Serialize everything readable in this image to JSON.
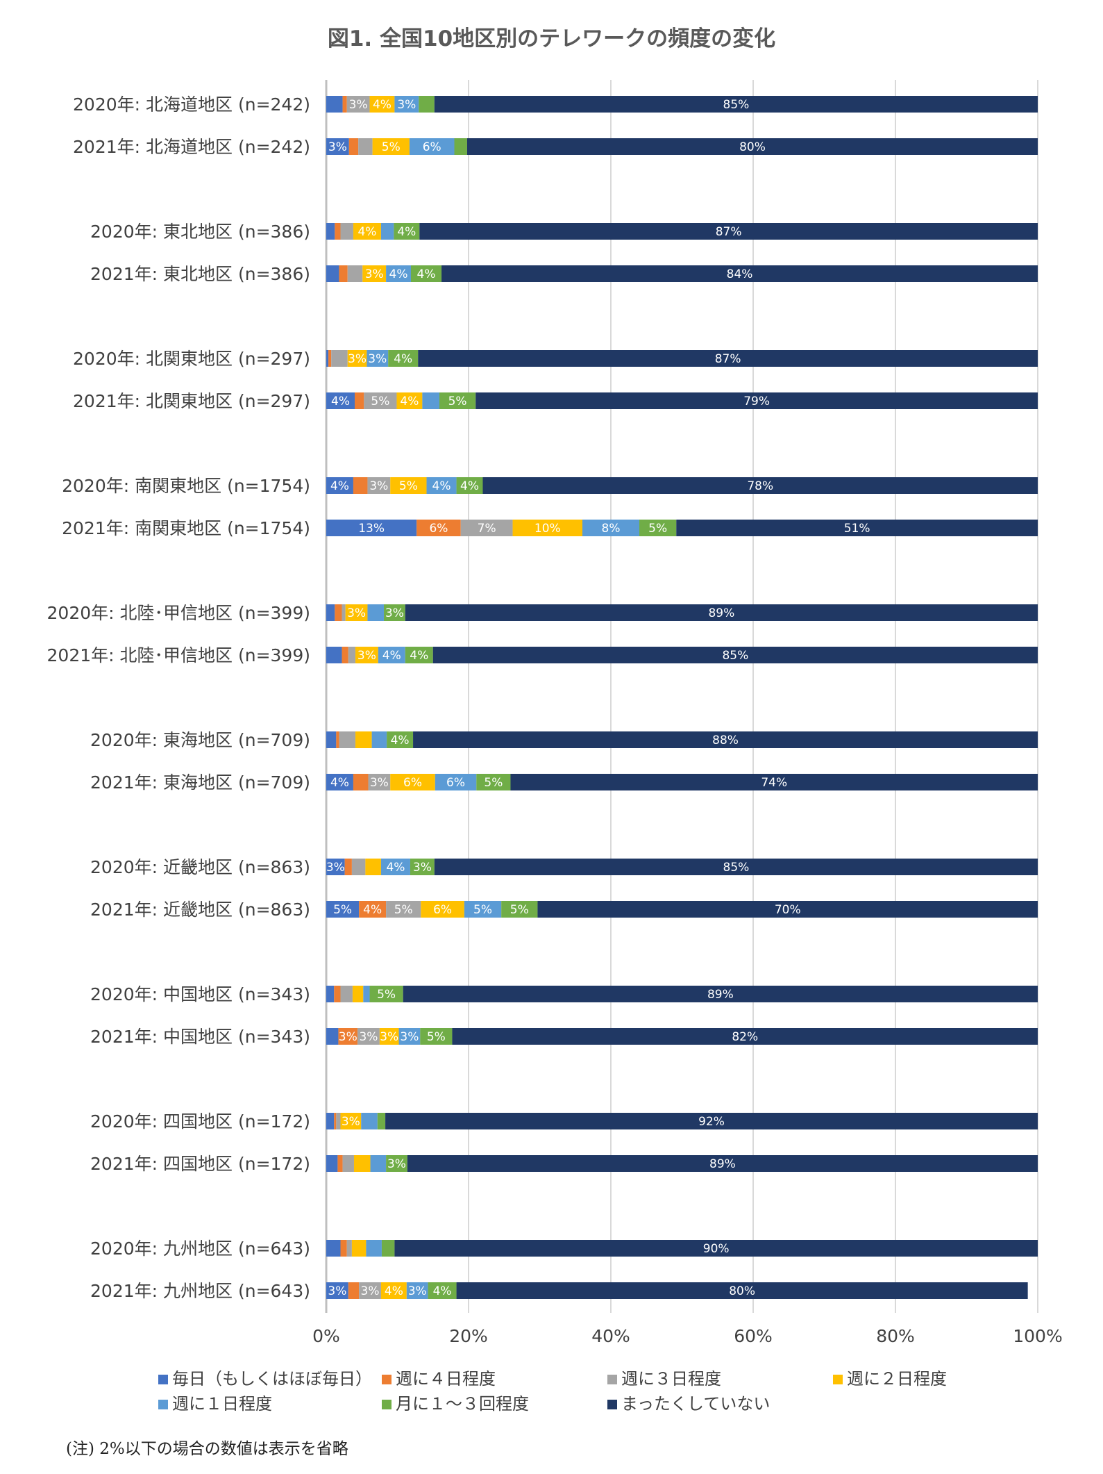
{
  "chart_data": {
    "type": "bar",
    "orientation": "horizontal-stacked-100",
    "title": "図1. 全国10地区別のテレワークの頻度の変化",
    "note": "(注) 2%以下の場合の数値は表示を省略",
    "x_ticks": [
      "0%",
      "20%",
      "40%",
      "60%",
      "80%",
      "100%"
    ],
    "xlim": [
      0,
      100
    ],
    "grid": true,
    "legend_position": "bottom",
    "categories": [
      "2020年: 北海道地区 (n=242)",
      "2021年: 北海道地区 (n=242)",
      "2020年: 東北地区 (n=386)",
      "2021年: 東北地区 (n=386)",
      "2020年: 北関東地区 (n=297)",
      "2021年: 北関東地区 (n=297)",
      "2020年: 南関東地区 (n=1754)",
      "2021年: 南関東地区 (n=1754)",
      "2020年: 北陸･甲信地区 (n=399)",
      "2021年: 北陸･甲信地区 (n=399)",
      "2020年: 東海地区 (n=709)",
      "2021年: 東海地区 (n=709)",
      "2020年: 近畿地区 (n=863)",
      "2021年: 近畿地区 (n=863)",
      "2020年: 中国地区 (n=343)",
      "2021年: 中国地区 (n=343)",
      "2020年: 四国地区 (n=172)",
      "2021年: 四国地区 (n=172)",
      "2020年: 九州地区 (n=643)",
      "2021年: 九州地区 (n=643)"
    ],
    "series": [
      {
        "name": "毎日（もしくはほぼ毎日）",
        "color": "#4472c4",
        "values": [
          2.3,
          3.2,
          1.2,
          1.8,
          0.3,
          4.0,
          3.8,
          12.7,
          1.2,
          2.2,
          1.4,
          3.8,
          2.6,
          4.6,
          1.1,
          1.7,
          1.1,
          1.6,
          2.0,
          3.1
        ]
      },
      {
        "name": "週に４日程度",
        "color": "#ed7d31",
        "values": [
          0.6,
          1.3,
          0.8,
          1.2,
          0.4,
          1.3,
          2.0,
          6.2,
          1.0,
          0.9,
          0.4,
          2.1,
          1.0,
          3.8,
          0.9,
          2.7,
          0.3,
          0.7,
          0.9,
          1.5
        ]
      },
      {
        "name": "週に３日程度",
        "color": "#a5a5a5",
        "values": [
          3.2,
          2.0,
          1.8,
          2.1,
          2.3,
          4.6,
          3.2,
          7.3,
          0.5,
          1.0,
          2.3,
          3.1,
          1.9,
          4.9,
          1.7,
          3.1,
          0.6,
          1.6,
          0.7,
          3.1
        ]
      },
      {
        "name": "週に２日程度",
        "color": "#ffc000",
        "values": [
          3.5,
          5.2,
          3.9,
          3.3,
          2.7,
          3.6,
          5.1,
          9.8,
          3.1,
          3.2,
          2.3,
          6.3,
          2.2,
          6.1,
          1.5,
          2.7,
          2.9,
          2.3,
          2.0,
          3.6
        ]
      },
      {
        "name": "週に１日程度",
        "color": "#5b9bd5",
        "values": [
          3.4,
          6.3,
          1.8,
          3.5,
          3.0,
          2.4,
          4.2,
          8.0,
          2.3,
          3.8,
          2.1,
          5.8,
          4.1,
          5.2,
          0.9,
          3.0,
          2.3,
          2.2,
          2.2,
          3.0
        ]
      },
      {
        "name": "月に１～３回程度",
        "color": "#70ad47",
        "values": [
          2.2,
          1.8,
          3.6,
          4.3,
          4.2,
          5.1,
          3.7,
          5.2,
          3.0,
          3.9,
          3.7,
          4.8,
          3.4,
          5.1,
          4.7,
          4.5,
          1.1,
          3.0,
          1.8,
          4.0
        ]
      },
      {
        "name": "まったくしていない",
        "color": "#203864",
        "values": [
          84.8,
          80.2,
          86.9,
          83.8,
          87.1,
          79.0,
          78.0,
          50.8,
          88.9,
          85.0,
          87.8,
          74.1,
          84.8,
          70.3,
          89.2,
          82.3,
          91.7,
          88.6,
          90.4,
          80.3
        ]
      }
    ]
  }
}
